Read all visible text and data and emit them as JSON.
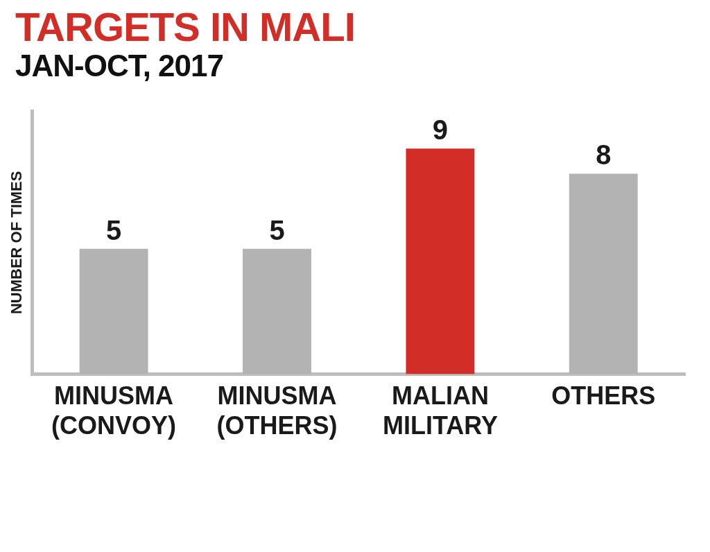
{
  "chart_data": {
    "type": "bar",
    "title": "TARGETS IN MALI",
    "subtitle": "JAN-OCT, 2017",
    "ylabel": "NUMBER OF TIMES",
    "categories": [
      "MINUSMA (CONVOY)",
      "MINUSMA (OTHERS)",
      "MALIAN MILITARY",
      "OTHERS"
    ],
    "values": [
      5,
      5,
      9,
      8
    ],
    "colors": [
      "#b3b3b3",
      "#b3b3b3",
      "#d22d26",
      "#b3b3b3"
    ],
    "ylim": [
      0,
      10.5
    ],
    "tick_labels": "x",
    "grid": false,
    "legend": false,
    "data_labels": true
  }
}
